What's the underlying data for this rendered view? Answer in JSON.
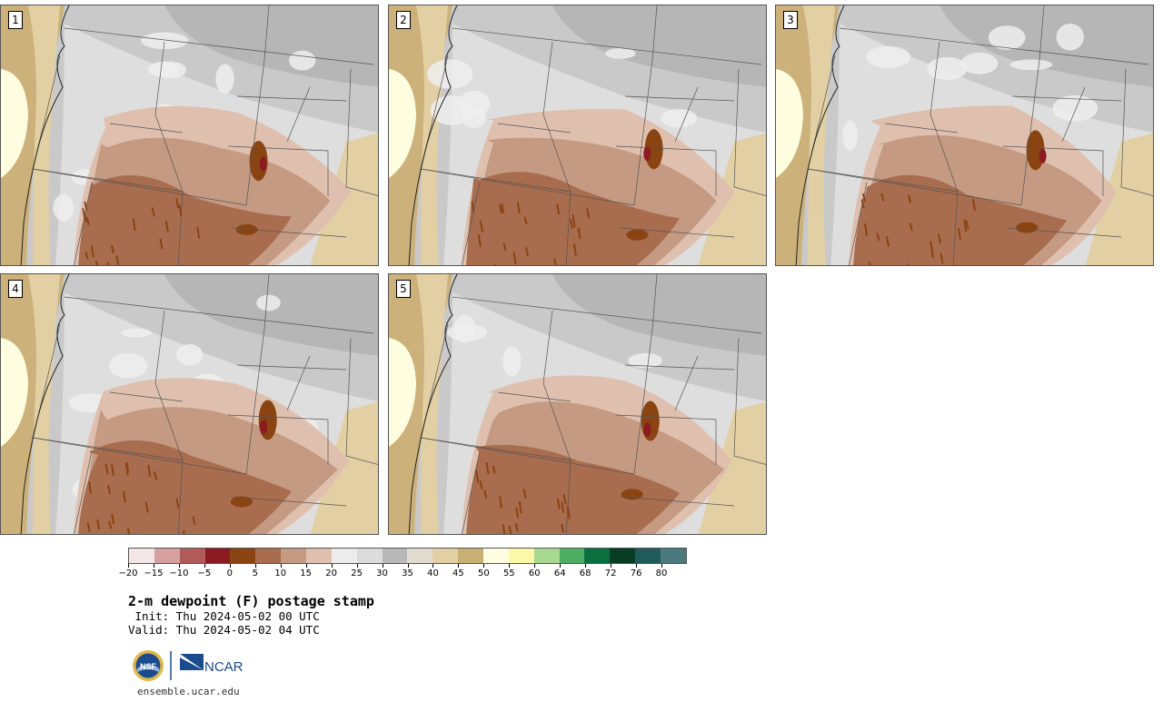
{
  "panels": [
    {
      "label": "1"
    },
    {
      "label": "2"
    },
    {
      "label": "3"
    },
    {
      "label": "4"
    },
    {
      "label": "5"
    }
  ],
  "colorbar": {
    "colors": [
      "#f3e6e6",
      "#d4a0a0",
      "#b05a5a",
      "#8b1a22",
      "#8a4412",
      "#a86c4e",
      "#c49a82",
      "#dfc0ae",
      "#ececec",
      "#dcdcdc",
      "#b8b8b8",
      "#e0ddd0",
      "#e2d0a4",
      "#c8b074",
      "#fffde0",
      "#fbf8a8",
      "#a6d890",
      "#4cae62",
      "#0a7040",
      "#083c24",
      "#1e5c5c",
      "#4a7a7e"
    ],
    "ticks": [
      "−20",
      "−15",
      "−10",
      "−5",
      "0",
      "5",
      "10",
      "15",
      "20",
      "25",
      "30",
      "35",
      "40",
      "45",
      "50",
      "55",
      "60",
      "64",
      "68",
      "72",
      "76",
      "80"
    ]
  },
  "title": "2-m dewpoint (F) postage stamp",
  "init": " Init: Thu 2024-05-02 00 UTC",
  "valid": "Valid: Thu 2024-05-02 04 UTC",
  "logos": {
    "nsf_text": "NSF",
    "ncar_text": "NCAR"
  },
  "website": "ensemble.ucar.edu"
}
